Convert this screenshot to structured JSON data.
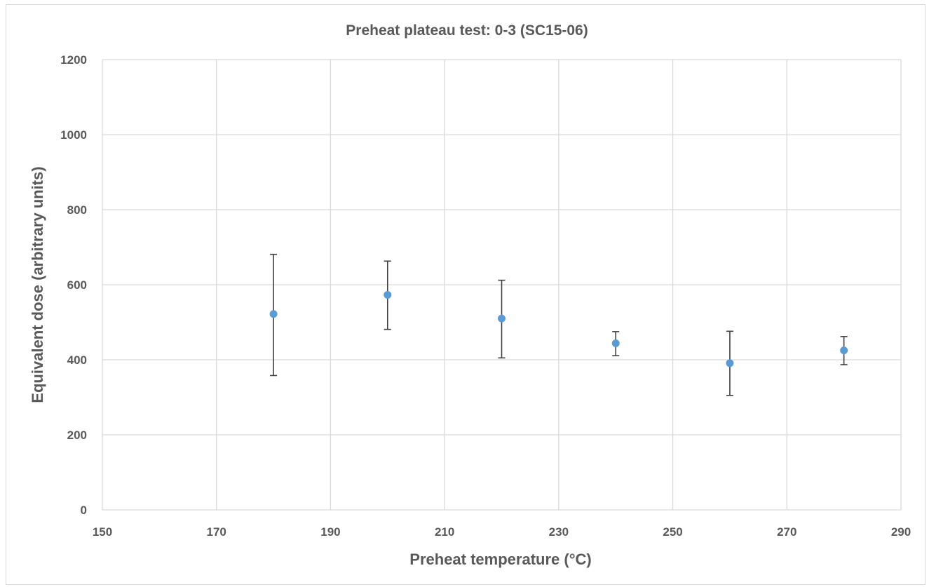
{
  "chart_data": {
    "type": "scatter",
    "title": "Preheat plateau test: 0-3 (SC15-06)",
    "xlabel": "Preheat temperature (°C)",
    "ylabel": "Equivalent dose (arbitrary units)",
    "xlim": [
      150,
      290
    ],
    "ylim": [
      0,
      1200
    ],
    "xticks": [
      150,
      170,
      190,
      210,
      230,
      250,
      270,
      290
    ],
    "yticks": [
      0,
      200,
      400,
      600,
      800,
      1000,
      1200
    ],
    "grid": true,
    "legend": "none",
    "marker_color": "#5B9BD5",
    "errorbar_color": "#404040",
    "points": [
      {
        "x": 180,
        "y": 522,
        "err_low": 358,
        "err_high": 681
      },
      {
        "x": 200,
        "y": 573,
        "err_low": 481,
        "err_high": 663
      },
      {
        "x": 220,
        "y": 510,
        "err_low": 405,
        "err_high": 612
      },
      {
        "x": 240,
        "y": 444,
        "err_low": 411,
        "err_high": 475
      },
      {
        "x": 260,
        "y": 391,
        "err_low": 305,
        "err_high": 476
      },
      {
        "x": 280,
        "y": 425,
        "err_low": 387,
        "err_high": 462
      }
    ]
  }
}
